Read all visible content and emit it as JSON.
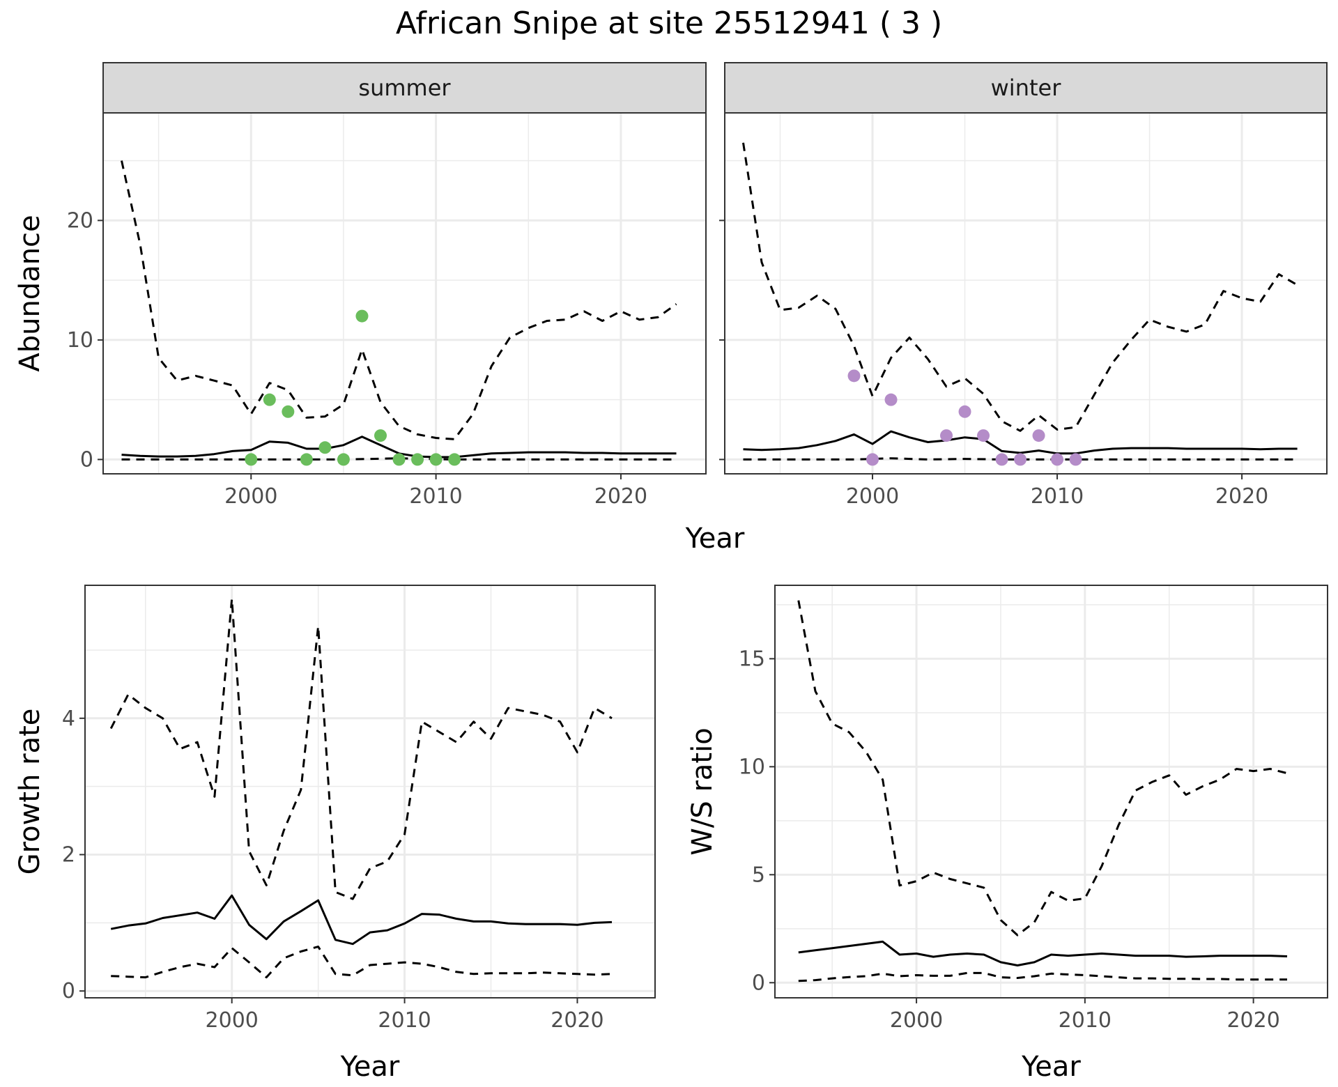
{
  "title": "African Snipe at site 25512941 ( 3 )",
  "colors": {
    "summer_points": "#6ABD5C",
    "winter_points": "#B48CC8",
    "line": "#000000",
    "strip_bg": "#D9D9D9",
    "grid": "#EBEBEB"
  },
  "chart_data": [
    {
      "type": "line",
      "id": "abundance-summer",
      "facet_label": "summer",
      "xlabel": "",
      "ylabel": "Abundance",
      "xlim": [
        1992,
        2024.6
      ],
      "ylim": [
        -1.2,
        29
      ],
      "xticks": [
        2000,
        2010,
        2020
      ],
      "yticks": [
        0,
        10,
        20
      ],
      "grid": true,
      "series": [
        {
          "style": "solid",
          "x": [
            1993,
            1994,
            1995,
            1996,
            1997,
            1998,
            1999,
            2000,
            2001,
            2002,
            2003,
            2004,
            2005,
            2006,
            2007,
            2008,
            2009,
            2010,
            2011,
            2012,
            2013,
            2014,
            2015,
            2016,
            2017,
            2018,
            2019,
            2020,
            2021,
            2022,
            2023
          ],
          "values": [
            0.4,
            0.3,
            0.25,
            0.25,
            0.3,
            0.45,
            0.7,
            0.8,
            1.5,
            1.4,
            0.9,
            0.9,
            1.2,
            1.9,
            1.2,
            0.5,
            0.25,
            0.2,
            0.2,
            0.35,
            0.5,
            0.55,
            0.6,
            0.6,
            0.6,
            0.55,
            0.55,
            0.5,
            0.5,
            0.5,
            0.5
          ]
        },
        {
          "style": "dashed",
          "x": [
            1993,
            1994,
            1995,
            1996,
            1997,
            1998,
            1999,
            2000,
            2001,
            2002,
            2003,
            2004,
            2005,
            2006,
            2007,
            2008,
            2009,
            2010,
            2011,
            2012,
            2013,
            2014,
            2015,
            2016,
            2017,
            2018,
            2019,
            2020,
            2021,
            2022,
            2023
          ],
          "values": [
            25,
            18,
            8.5,
            6.6,
            7,
            6.6,
            6.2,
            3.8,
            6.4,
            5.8,
            3.5,
            3.6,
            4.6,
            9.2,
            4.8,
            2.8,
            2.1,
            1.8,
            1.7,
            3.8,
            7.8,
            10.2,
            11,
            11.6,
            11.7,
            12.4,
            11.6,
            12.4,
            11.7,
            11.9,
            13
          ]
        },
        {
          "style": "dashed",
          "x": [
            1993,
            1996,
            1999,
            2002,
            2005,
            2008,
            2011,
            2014,
            2017,
            2020,
            2023
          ],
          "values": [
            0,
            0,
            0,
            0,
            0,
            0.1,
            0,
            0,
            0,
            0,
            0
          ]
        }
      ],
      "points": {
        "x": [
          2000,
          2001,
          2002,
          2003,
          2004,
          2005,
          2006,
          2007,
          2008,
          2009,
          2010,
          2011
        ],
        "values": [
          0,
          5,
          4,
          0,
          1,
          0,
          12,
          2,
          0,
          0,
          0,
          0
        ]
      }
    },
    {
      "type": "line",
      "id": "abundance-winter",
      "facet_label": "winter",
      "xlabel": "",
      "ylabel": "",
      "xlim": [
        1992,
        2024.6
      ],
      "ylim": [
        -1.2,
        29
      ],
      "xticks": [
        2000,
        2010,
        2020
      ],
      "yticks": [
        0,
        10,
        20
      ],
      "grid": true,
      "series": [
        {
          "style": "solid",
          "x": [
            1993,
            1994,
            1995,
            1996,
            1997,
            1998,
            1999,
            2000,
            2001,
            2002,
            2003,
            2004,
            2005,
            2006,
            2007,
            2008,
            2009,
            2010,
            2011,
            2012,
            2013,
            2014,
            2015,
            2016,
            2017,
            2018,
            2019,
            2020,
            2021,
            2022,
            2023
          ],
          "values": [
            0.85,
            0.8,
            0.85,
            0.95,
            1.2,
            1.55,
            2.1,
            1.3,
            2.35,
            1.85,
            1.45,
            1.6,
            1.85,
            1.7,
            0.7,
            0.55,
            0.75,
            0.5,
            0.5,
            0.75,
            0.9,
            0.95,
            0.95,
            0.95,
            0.9,
            0.9,
            0.9,
            0.9,
            0.85,
            0.9,
            0.9
          ]
        },
        {
          "style": "dashed",
          "x": [
            1993,
            1994,
            1995,
            1996,
            1997,
            1998,
            1999,
            2000,
            2001,
            2002,
            2003,
            2004,
            2005,
            2006,
            2007,
            2008,
            2009,
            2010,
            2011,
            2012,
            2013,
            2014,
            2015,
            2016,
            2017,
            2018,
            2019,
            2020,
            2021,
            2022,
            2023
          ],
          "values": [
            26.5,
            16.5,
            12.5,
            12.7,
            13.7,
            12.6,
            9.5,
            5.3,
            8.5,
            10.2,
            8.4,
            6.1,
            6.8,
            5.5,
            3.2,
            2.4,
            3.7,
            2.5,
            2.7,
            5.4,
            8.1,
            10,
            11.7,
            11.1,
            10.7,
            11.3,
            14.1,
            13.5,
            13.2,
            15.5,
            14.6
          ]
        },
        {
          "style": "dashed",
          "x": [
            1993,
            1996,
            1999,
            2001,
            2003,
            2005,
            2007,
            2009,
            2012,
            2015,
            2018,
            2021,
            2023
          ],
          "values": [
            0,
            0,
            0,
            0.1,
            0,
            0.05,
            0,
            0,
            0,
            0,
            0,
            0,
            0
          ]
        }
      ],
      "points": {
        "x": [
          1999,
          2000,
          2001,
          2004,
          2005,
          2006,
          2007,
          2008,
          2009,
          2010,
          2011
        ],
        "values": [
          7,
          0,
          5,
          2,
          4,
          2,
          0,
          0,
          2,
          0,
          0
        ]
      }
    },
    {
      "type": "line",
      "id": "growth-rate",
      "facet_label": "",
      "xlabel": "Year",
      "ylabel": "Growth rate",
      "xlim": [
        1991.5,
        2024.5
      ],
      "ylim": [
        -0.1,
        5.95
      ],
      "xticks": [
        2000,
        2010,
        2020
      ],
      "yticks": [
        0,
        2,
        4
      ],
      "grid": true,
      "series": [
        {
          "style": "solid",
          "x": [
            1993,
            1994,
            1995,
            1996,
            1997,
            1998,
            1999,
            2000,
            2001,
            2002,
            2003,
            2004,
            2005,
            2006,
            2007,
            2008,
            2009,
            2010,
            2011,
            2012,
            2013,
            2014,
            2015,
            2016,
            2017,
            2018,
            2019,
            2020,
            2021,
            2022
          ],
          "values": [
            0.91,
            0.96,
            0.99,
            1.07,
            1.11,
            1.15,
            1.06,
            1.4,
            0.97,
            0.76,
            1.02,
            1.17,
            1.33,
            0.75,
            0.69,
            0.86,
            0.89,
            0.99,
            1.13,
            1.12,
            1.06,
            1.02,
            1.02,
            0.99,
            0.98,
            0.98,
            0.98,
            0.97,
            1.0,
            1.01
          ]
        },
        {
          "style": "dashed",
          "x": [
            1993,
            1994,
            1995,
            1996,
            1997,
            1998,
            1999,
            2000,
            2001,
            2002,
            2003,
            2004,
            2005,
            2006,
            2007,
            2008,
            2009,
            2010,
            2011,
            2012,
            2013,
            2014,
            2015,
            2016,
            2017,
            2018,
            2019,
            2020,
            2021,
            2022
          ],
          "values": [
            3.85,
            4.35,
            4.15,
            4.0,
            3.55,
            3.65,
            2.85,
            5.75,
            2.05,
            1.55,
            2.35,
            2.95,
            5.35,
            1.45,
            1.35,
            1.8,
            1.9,
            2.3,
            3.95,
            3.8,
            3.65,
            3.95,
            3.7,
            4.15,
            4.1,
            4.05,
            3.95,
            3.5,
            4.15,
            4.0
          ]
        },
        {
          "style": "dashed",
          "x": [
            1993,
            1994,
            1995,
            1996,
            1997,
            1998,
            1999,
            2000,
            2001,
            2002,
            2003,
            2004,
            2005,
            2006,
            2007,
            2008,
            2009,
            2010,
            2011,
            2012,
            2013,
            2014,
            2015,
            2016,
            2017,
            2018,
            2019,
            2020,
            2021,
            2022
          ],
          "values": [
            0.22,
            0.21,
            0.2,
            0.28,
            0.35,
            0.4,
            0.35,
            0.63,
            0.42,
            0.2,
            0.48,
            0.58,
            0.65,
            0.25,
            0.23,
            0.38,
            0.4,
            0.42,
            0.4,
            0.35,
            0.28,
            0.25,
            0.26,
            0.26,
            0.26,
            0.27,
            0.26,
            0.25,
            0.24,
            0.25
          ]
        }
      ]
    },
    {
      "type": "line",
      "id": "ws-ratio",
      "facet_label": "",
      "xlabel": "Year",
      "ylabel": "W/S ratio",
      "xlim": [
        1991.6,
        2024.4
      ],
      "ylim": [
        -0.7,
        18.4
      ],
      "xticks": [
        2000,
        2010,
        2020
      ],
      "yticks": [
        0,
        5,
        10,
        15
      ],
      "grid": true,
      "series": [
        {
          "style": "solid",
          "x": [
            1993,
            1994,
            1995,
            1996,
            1997,
            1998,
            1999,
            2000,
            2001,
            2002,
            2003,
            2004,
            2005,
            2006,
            2007,
            2008,
            2009,
            2010,
            2011,
            2012,
            2013,
            2014,
            2015,
            2016,
            2017,
            2018,
            2019,
            2020,
            2021,
            2022
          ],
          "values": [
            1.4,
            1.5,
            1.6,
            1.7,
            1.8,
            1.9,
            1.3,
            1.35,
            1.2,
            1.3,
            1.35,
            1.3,
            0.95,
            0.8,
            0.95,
            1.3,
            1.25,
            1.3,
            1.35,
            1.3,
            1.25,
            1.25,
            1.25,
            1.2,
            1.22,
            1.25,
            1.25,
            1.25,
            1.25,
            1.22
          ]
        },
        {
          "style": "dashed",
          "x": [
            1993,
            1994,
            1995,
            1996,
            1997,
            1998,
            1999,
            2000,
            2001,
            2002,
            2003,
            2004,
            2005,
            2006,
            2007,
            2008,
            2009,
            2010,
            2011,
            2012,
            2013,
            2014,
            2015,
            2016,
            2017,
            2018,
            2019,
            2020,
            2021,
            2022
          ],
          "values": [
            17.7,
            13.5,
            12.0,
            11.6,
            10.7,
            9.4,
            4.5,
            4.7,
            5.1,
            4.8,
            4.6,
            4.4,
            2.9,
            2.2,
            2.8,
            4.2,
            3.8,
            3.9,
            5.4,
            7.3,
            8.9,
            9.3,
            9.6,
            8.7,
            9.1,
            9.4,
            9.9,
            9.8,
            9.9,
            9.7
          ]
        },
        {
          "style": "dashed",
          "x": [
            1993,
            1994,
            1995,
            1996,
            1997,
            1998,
            1999,
            2000,
            2001,
            2002,
            2003,
            2004,
            2005,
            2006,
            2007,
            2008,
            2009,
            2010,
            2011,
            2012,
            2013,
            2014,
            2015,
            2016,
            2017,
            2018,
            2019,
            2020,
            2021,
            2022
          ],
          "values": [
            0.08,
            0.12,
            0.2,
            0.26,
            0.3,
            0.42,
            0.3,
            0.35,
            0.32,
            0.32,
            0.45,
            0.45,
            0.25,
            0.22,
            0.3,
            0.42,
            0.38,
            0.35,
            0.3,
            0.25,
            0.2,
            0.2,
            0.18,
            0.18,
            0.17,
            0.17,
            0.15,
            0.15,
            0.15,
            0.15
          ]
        }
      ]
    }
  ],
  "shared_xlabel_top": "Year"
}
